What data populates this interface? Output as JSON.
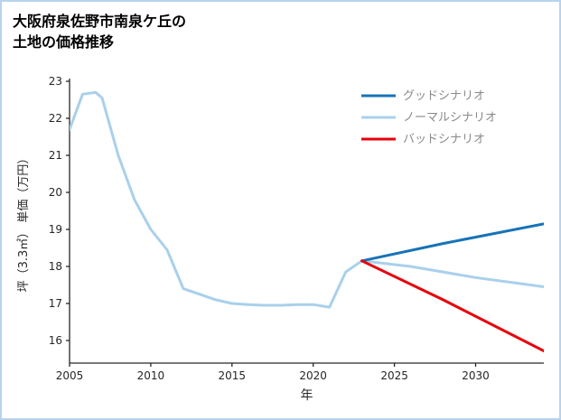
{
  "title": {
    "line1": "大阪府泉佐野市南泉ケ丘の",
    "line2": "土地の価格推移"
  },
  "chart_data": {
    "type": "line",
    "title": "大阪府泉佐野市南泉ケ丘の土地の価格推移",
    "xlabel": "年",
    "ylabel": "坪（3.3㎡） 単価（万円）",
    "xlim": [
      2005,
      2034.2
    ],
    "ylim": [
      15.39,
      23
    ],
    "xticks": [
      2005,
      2010,
      2015,
      2020,
      2025,
      2030
    ],
    "yticks": [
      16,
      17,
      18,
      19,
      20,
      21,
      22,
      23
    ],
    "grid": false,
    "legend_position": "upper right",
    "colors": {
      "good": "#1773b6",
      "normal": "#a9d0ec",
      "bad": "#e8000b",
      "axis": "#262626",
      "legend_text": "#8a8a8a"
    },
    "series": [
      {
        "name": "ノーマルシナリオ",
        "key": "normal",
        "color": "#a9d0ec",
        "points": [
          [
            2005,
            21.7
          ],
          [
            2005.8,
            22.65
          ],
          [
            2006.6,
            22.7
          ],
          [
            2007,
            22.55
          ],
          [
            2008,
            21.0
          ],
          [
            2009,
            19.8
          ],
          [
            2010,
            19.0
          ],
          [
            2011,
            18.45
          ],
          [
            2012,
            17.4
          ],
          [
            2013,
            17.25
          ],
          [
            2014,
            17.1
          ],
          [
            2015,
            17.0
          ],
          [
            2016,
            16.97
          ],
          [
            2017,
            16.95
          ],
          [
            2018,
            16.95
          ],
          [
            2019,
            16.97
          ],
          [
            2020,
            16.97
          ],
          [
            2021,
            16.9
          ],
          [
            2022,
            17.85
          ],
          [
            2023,
            18.15
          ],
          [
            2024,
            18.1
          ],
          [
            2026,
            18.0
          ],
          [
            2030,
            17.7
          ],
          [
            2034.2,
            17.45
          ]
        ]
      },
      {
        "name": "グッドシナリオ",
        "key": "good",
        "color": "#1773b6",
        "points": [
          [
            2023,
            18.15
          ],
          [
            2028,
            18.62
          ],
          [
            2034.2,
            19.15
          ]
        ]
      },
      {
        "name": "バッドシナリオ",
        "key": "bad",
        "color": "#e8000b",
        "points": [
          [
            2023,
            18.15
          ],
          [
            2028,
            17.1
          ],
          [
            2034.2,
            15.72
          ]
        ]
      }
    ],
    "legend": [
      "グッドシナリオ",
      "ノーマルシナリオ",
      "バッドシナリオ"
    ]
  }
}
